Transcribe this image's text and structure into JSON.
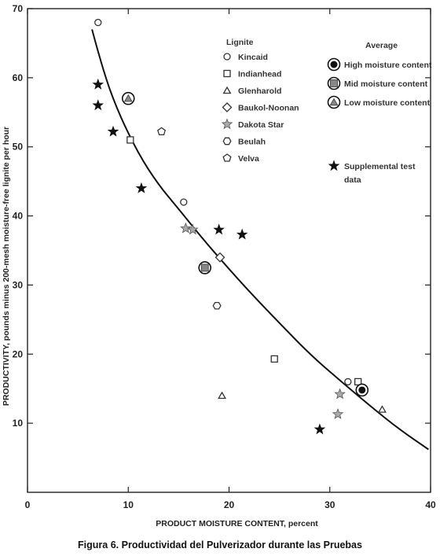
{
  "caption": "Figura 6. Productividad del Pulverizador durante las Pruebas",
  "chart_data": {
    "type": "scatter",
    "xlabel": "PRODUCT MOISTURE CONTENT, percent",
    "ylabel": "PRODUCTIVITY, pounds minus 200-mesh moisture-free lignite per hour",
    "xlim": [
      0,
      40
    ],
    "ylim": [
      0,
      70
    ],
    "xticks": [
      0,
      10,
      20,
      30,
      40
    ],
    "yticks": [
      10,
      20,
      30,
      40,
      50,
      60,
      70
    ],
    "grid": false,
    "legend_lignite": {
      "title": "Lignite",
      "placement": "top-center",
      "entries": [
        {
          "name": "Kincaid",
          "marker": "circle"
        },
        {
          "name": "Indianhead",
          "marker": "square"
        },
        {
          "name": "Glenharold",
          "marker": "triangle"
        },
        {
          "name": "Baukol-Noonan",
          "marker": "diamond"
        },
        {
          "name": "Dakota Star",
          "marker": "star-open"
        },
        {
          "name": "Beulah",
          "marker": "hexagon"
        },
        {
          "name": "Velva",
          "marker": "pentagon"
        }
      ]
    },
    "legend_average": {
      "title": "Average",
      "placement": "top-right",
      "entries": [
        {
          "name": "High moisture content",
          "marker": "circle-avg"
        },
        {
          "name": "Mid moisture content",
          "marker": "square-avg"
        },
        {
          "name": "Low moisture content",
          "marker": "triangle-avg"
        }
      ]
    },
    "legend_supplemental": {
      "name": "Supplemental test data",
      "lines": [
        "Supplemental test",
        "data"
      ],
      "marker": "star-filled"
    },
    "series": [
      {
        "name": "Kincaid",
        "marker": "circle",
        "points": [
          [
            7.0,
            68.0
          ],
          [
            15.5,
            42.0
          ],
          [
            31.8,
            16.0
          ]
        ]
      },
      {
        "name": "Indianhead",
        "marker": "square",
        "points": [
          [
            10.2,
            51.0
          ],
          [
            24.5,
            19.3
          ],
          [
            32.8,
            16.0
          ]
        ]
      },
      {
        "name": "Glenharold",
        "marker": "triangle",
        "points": [
          [
            19.3,
            14.0
          ],
          [
            35.2,
            12.0
          ]
        ]
      },
      {
        "name": "Baukol-Noonan",
        "marker": "diamond",
        "points": [
          [
            19.1,
            34.0
          ]
        ]
      },
      {
        "name": "Dakota Star",
        "marker": "star-open",
        "points": [
          [
            15.7,
            38.2
          ],
          [
            16.4,
            38.0
          ],
          [
            31.0,
            14.2
          ],
          [
            30.8,
            11.3
          ]
        ]
      },
      {
        "name": "Beulah",
        "marker": "hexagon",
        "points": [
          [
            18.8,
            27.0
          ]
        ]
      },
      {
        "name": "Velva",
        "marker": "pentagon",
        "points": [
          [
            13.3,
            52.2
          ]
        ]
      },
      {
        "name": "High moisture content",
        "marker": "circle-avg",
        "points": [
          [
            33.2,
            14.8
          ]
        ]
      },
      {
        "name": "Mid moisture content",
        "marker": "square-avg",
        "points": [
          [
            17.6,
            32.5
          ]
        ]
      },
      {
        "name": "Low moisture content",
        "marker": "triangle-avg",
        "points": [
          [
            10.0,
            57.0
          ]
        ]
      },
      {
        "name": "Supplemental test data",
        "marker": "star-filled",
        "points": [
          [
            7.0,
            59.0
          ],
          [
            7.0,
            56.0
          ],
          [
            8.5,
            52.2
          ],
          [
            11.3,
            44.0
          ],
          [
            19.0,
            38.0
          ],
          [
            21.3,
            37.3
          ],
          [
            29.0,
            9.1
          ]
        ]
      }
    ],
    "fit_curve": [
      [
        6.4,
        67.0
      ],
      [
        7.5,
        61.0
      ],
      [
        9.0,
        55.0
      ],
      [
        11.0,
        49.0
      ],
      [
        13.0,
        44.5
      ],
      [
        15.0,
        41.0
      ],
      [
        17.5,
        36.5
      ],
      [
        20.0,
        32.3
      ],
      [
        22.5,
        28.3
      ],
      [
        25.0,
        24.5
      ],
      [
        28.0,
        20.0
      ],
      [
        31.0,
        16.2
      ],
      [
        34.0,
        12.5
      ],
      [
        37.0,
        9.0
      ],
      [
        39.8,
        6.2
      ]
    ]
  }
}
